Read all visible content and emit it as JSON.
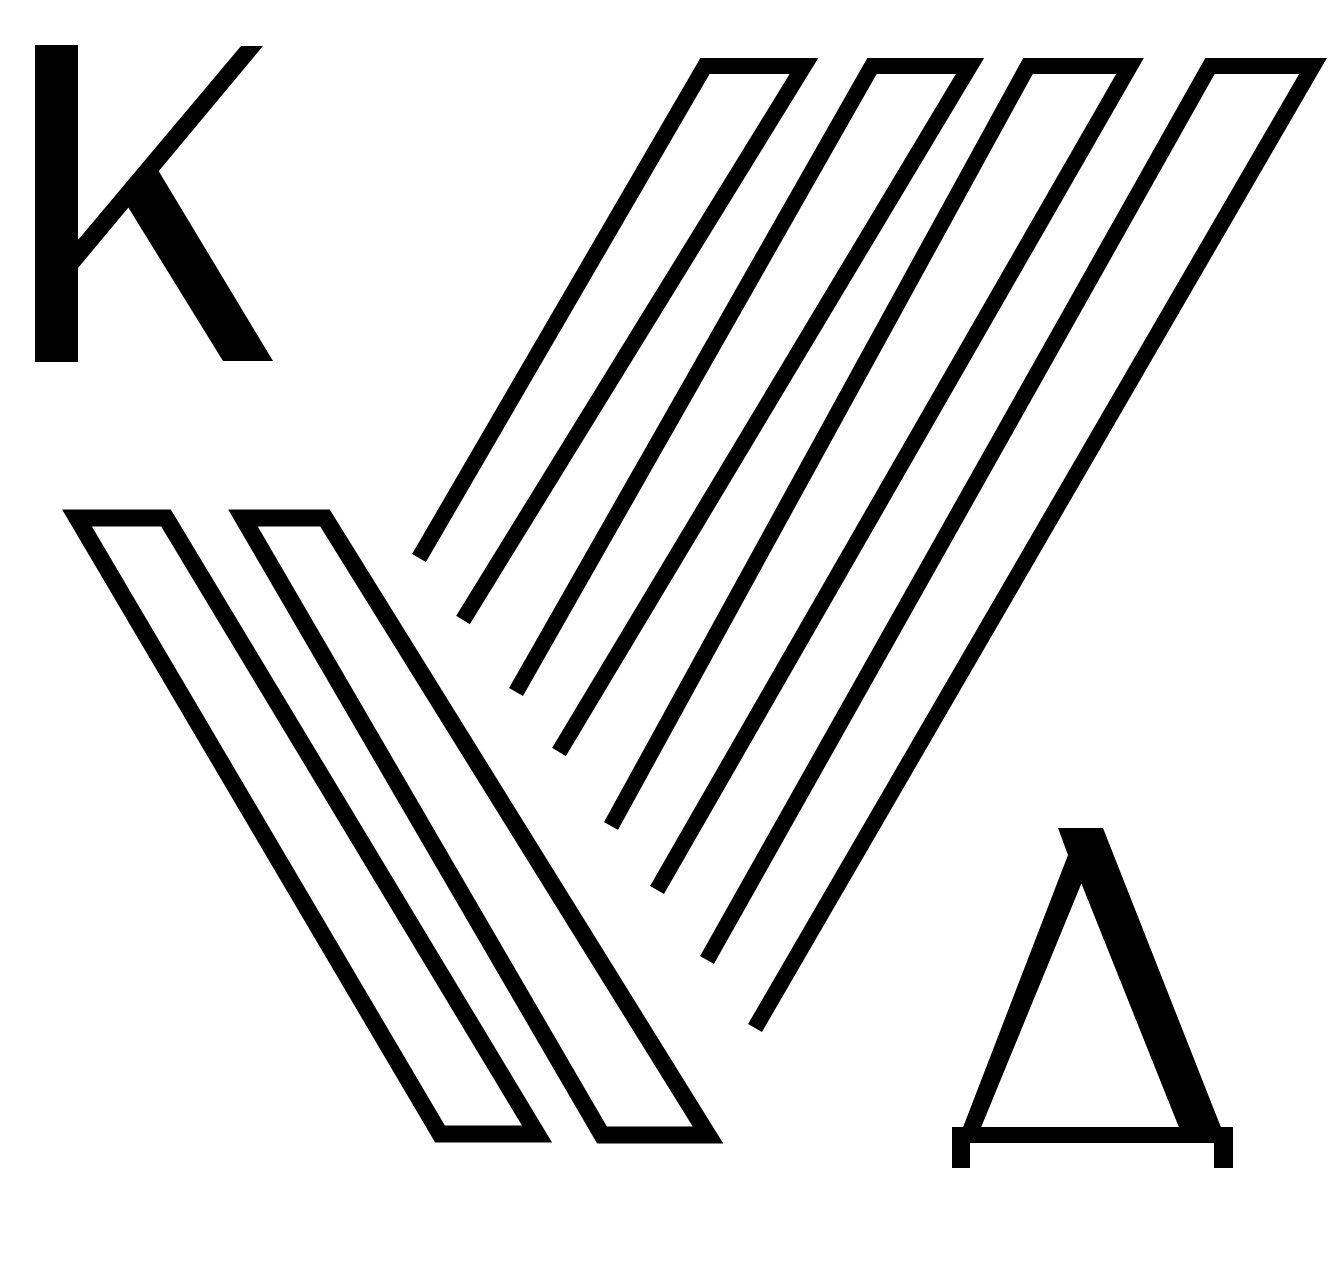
{
  "logo": {
    "letters": [
      "К",
      "Д"
    ],
    "colors": {
      "ink": "#000000",
      "background": "#ffffff"
    }
  }
}
